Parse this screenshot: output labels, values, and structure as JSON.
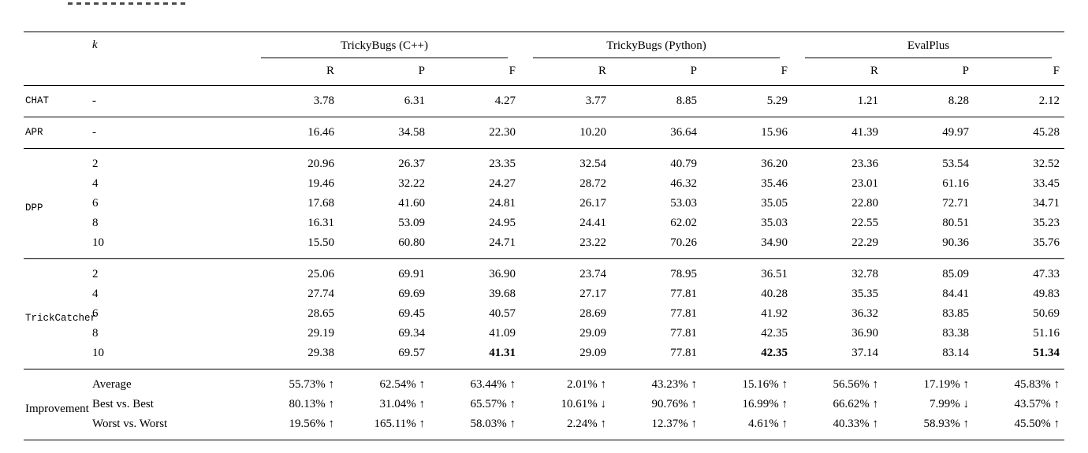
{
  "table": {
    "k_header": "k",
    "groups": [
      {
        "label": "TrickyBugs (C++)"
      },
      {
        "label": "TrickyBugs (Python)"
      },
      {
        "label": "EvalPlus"
      }
    ],
    "metric_headers": [
      "R",
      "P",
      "F"
    ],
    "sections": [
      {
        "method": "CHAT",
        "method_font": "mono",
        "rows": [
          {
            "k": "-",
            "values": [
              "3.78",
              "6.31",
              "4.27",
              "3.77",
              "8.85",
              "5.29",
              "1.21",
              "8.28",
              "2.12"
            ],
            "bold": []
          }
        ]
      },
      {
        "method": "APR",
        "method_font": "mono",
        "rows": [
          {
            "k": "-",
            "values": [
              "16.46",
              "34.58",
              "22.30",
              "10.20",
              "36.64",
              "15.96",
              "41.39",
              "49.97",
              "45.28"
            ],
            "bold": []
          }
        ]
      },
      {
        "method": "DPP",
        "method_font": "mono",
        "rows": [
          {
            "k": "2",
            "values": [
              "20.96",
              "26.37",
              "23.35",
              "32.54",
              "40.79",
              "36.20",
              "23.36",
              "53.54",
              "32.52"
            ],
            "bold": []
          },
          {
            "k": "4",
            "values": [
              "19.46",
              "32.22",
              "24.27",
              "28.72",
              "46.32",
              "35.46",
              "23.01",
              "61.16",
              "33.45"
            ],
            "bold": []
          },
          {
            "k": "6",
            "values": [
              "17.68",
              "41.60",
              "24.81",
              "26.17",
              "53.03",
              "35.05",
              "22.80",
              "72.71",
              "34.71"
            ],
            "bold": []
          },
          {
            "k": "8",
            "values": [
              "16.31",
              "53.09",
              "24.95",
              "24.41",
              "62.02",
              "35.03",
              "22.55",
              "80.51",
              "35.23"
            ],
            "bold": []
          },
          {
            "k": "10",
            "values": [
              "15.50",
              "60.80",
              "24.71",
              "23.22",
              "70.26",
              "34.90",
              "22.29",
              "90.36",
              "35.76"
            ],
            "bold": []
          }
        ]
      },
      {
        "method": "TrickCatcher",
        "method_font": "mono",
        "rows": [
          {
            "k": "2",
            "values": [
              "25.06",
              "69.91",
              "36.90",
              "23.74",
              "78.95",
              "36.51",
              "32.78",
              "85.09",
              "47.33"
            ],
            "bold": []
          },
          {
            "k": "4",
            "values": [
              "27.74",
              "69.69",
              "39.68",
              "27.17",
              "77.81",
              "40.28",
              "35.35",
              "84.41",
              "49.83"
            ],
            "bold": []
          },
          {
            "k": "6",
            "values": [
              "28.65",
              "69.45",
              "40.57",
              "28.69",
              "77.81",
              "41.92",
              "36.32",
              "83.85",
              "50.69"
            ],
            "bold": []
          },
          {
            "k": "8",
            "values": [
              "29.19",
              "69.34",
              "41.09",
              "29.09",
              "77.81",
              "42.35",
              "36.90",
              "83.38",
              "51.16"
            ],
            "bold": []
          },
          {
            "k": "10",
            "values": [
              "29.38",
              "69.57",
              "41.31",
              "29.09",
              "77.81",
              "42.35",
              "37.14",
              "83.14",
              "51.34"
            ],
            "bold": [
              2,
              5,
              8
            ]
          }
        ]
      },
      {
        "method": "Improvement",
        "method_font": "serif",
        "rows": [
          {
            "k": "Average",
            "values": [
              "55.73% ↑",
              "62.54% ↑",
              "63.44% ↑",
              "2.01% ↑",
              "43.23% ↑",
              "15.16% ↑",
              "56.56% ↑",
              "17.19% ↑",
              "45.83% ↑"
            ],
            "bold": []
          },
          {
            "k": "Best vs. Best",
            "values": [
              "80.13% ↑",
              "31.04% ↑",
              "65.57% ↑",
              "10.61% ↓",
              "90.76% ↑",
              "16.99% ↑",
              "66.62% ↑",
              "7.99% ↓",
              "43.57% ↑"
            ],
            "bold": []
          },
          {
            "k": "Worst vs. Worst",
            "values": [
              "19.56% ↑",
              "165.11% ↑",
              "58.03% ↑",
              "2.24% ↑",
              "12.37% ↑",
              "4.61% ↑",
              "40.33% ↑",
              "58.93% ↑",
              "45.50% ↑"
            ],
            "bold": []
          }
        ]
      }
    ]
  }
}
